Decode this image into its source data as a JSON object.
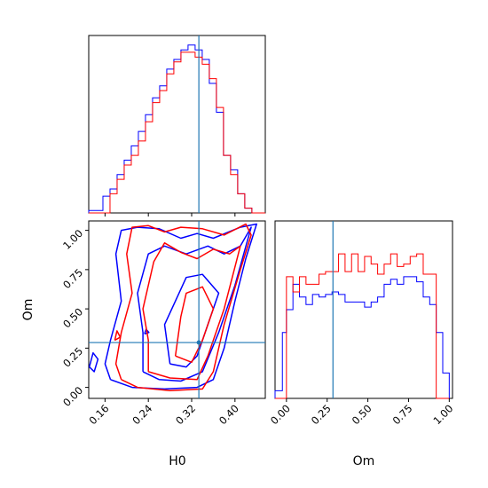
{
  "chart_data": [
    {
      "panel": "H0 marginal",
      "type": "histogram-step",
      "x_range": [
        0.1299,
        0.456
      ],
      "bin_edges": [
        0.1299,
        0.143,
        0.1561,
        0.1692,
        0.1823,
        0.1954,
        0.2085,
        0.2216,
        0.2347,
        0.2478,
        0.2609,
        0.274,
        0.2871,
        0.3002,
        0.3133,
        0.3264,
        0.3395,
        0.3526,
        0.3657,
        0.3788,
        0.3919,
        0.405,
        0.4181,
        0.4312,
        0.4443,
        0.456
      ],
      "series": [
        {
          "color": "#0000ff",
          "values": [
            0.5,
            0.5,
            3.5,
            5,
            8,
            11,
            14,
            17,
            20.5,
            24,
            26.5,
            30,
            32,
            34,
            35,
            34,
            32,
            27,
            21,
            12,
            9,
            4,
            1,
            0,
            0
          ]
        },
        {
          "color": "#ff0000",
          "values": [
            0,
            0,
            0,
            4,
            7,
            10,
            12,
            15,
            19,
            23,
            25.5,
            29,
            31.5,
            33.5,
            33.5,
            32.5,
            31,
            28,
            22,
            12,
            8,
            4,
            1,
            0,
            0
          ]
        }
      ],
      "truth_line": 0.3333,
      "x_ticks": [
        0.16,
        0.24,
        0.32,
        0.4
      ]
    },
    {
      "panel": "H0 vs Om 2D",
      "type": "contour",
      "xlabel": "H0",
      "ylabel": "Om",
      "x_range": [
        0.1299,
        0.456
      ],
      "y_range": [
        -0.07,
        1.06
      ],
      "x_tick_labels": [
        "0.16",
        "0.24",
        "0.32",
        "0.40"
      ],
      "x_tick_values": [
        0.16,
        0.24,
        0.32,
        0.4
      ],
      "y_tick_labels": [
        "0.00",
        "0.25",
        "0.50",
        "0.75",
        "1.00"
      ],
      "y_tick_values": [
        0.0,
        0.25,
        0.5,
        0.75,
        1.0
      ],
      "truth": {
        "x": 0.3333,
        "y": 0.2857
      },
      "series": [
        {
          "color": "#0000ff",
          "contours": [
            [
              [
                0.17,
                0.05
              ],
              [
                0.21,
                0.0
              ],
              [
                0.27,
                -0.01
              ],
              [
                0.33,
                0.0
              ],
              [
                0.36,
                0.05
              ],
              [
                0.38,
                0.25
              ],
              [
                0.4,
                0.55
              ],
              [
                0.42,
                0.82
              ],
              [
                0.44,
                1.04
              ],
              [
                0.41,
                1.02
              ],
              [
                0.36,
                0.95
              ],
              [
                0.33,
                0.98
              ],
              [
                0.3,
                0.95
              ],
              [
                0.26,
                1.01
              ],
              [
                0.22,
                1.02
              ],
              [
                0.19,
                1.0
              ],
              [
                0.18,
                0.85
              ],
              [
                0.19,
                0.55
              ],
              [
                0.17,
                0.3
              ],
              [
                0.16,
                0.15
              ],
              [
                0.17,
                0.05
              ]
            ],
            [
              [
                0.23,
                0.1
              ],
              [
                0.26,
                0.05
              ],
              [
                0.3,
                0.04
              ],
              [
                0.34,
                0.1
              ],
              [
                0.37,
                0.35
              ],
              [
                0.4,
                0.65
              ],
              [
                0.43,
                1.02
              ],
              [
                0.41,
                0.9
              ],
              [
                0.38,
                0.85
              ],
              [
                0.35,
                0.9
              ],
              [
                0.31,
                0.85
              ],
              [
                0.27,
                0.9
              ],
              [
                0.24,
                0.85
              ],
              [
                0.22,
                0.6
              ],
              [
                0.23,
                0.35
              ],
              [
                0.23,
                0.1
              ]
            ],
            [
              [
                0.28,
                0.15
              ],
              [
                0.31,
                0.13
              ],
              [
                0.33,
                0.2
              ],
              [
                0.35,
                0.4
              ],
              [
                0.37,
                0.6
              ],
              [
                0.34,
                0.72
              ],
              [
                0.31,
                0.7
              ],
              [
                0.29,
                0.55
              ],
              [
                0.27,
                0.4
              ],
              [
                0.28,
                0.15
              ]
            ],
            [
              [
                0.131,
                0.13
              ],
              [
                0.14,
                0.1
              ],
              [
                0.147,
                0.18
              ],
              [
                0.138,
                0.22
              ],
              [
                0.131,
                0.13
              ]
            ],
            [
              [
                0.233,
                0.34
              ],
              [
                0.241,
                0.35
              ],
              [
                0.236,
                0.37
              ],
              [
                0.233,
                0.34
              ]
            ]
          ]
        },
        {
          "color": "#ff0000",
          "contours": [
            [
              [
                0.19,
                0.05
              ],
              [
                0.22,
                0.0
              ],
              [
                0.28,
                -0.02
              ],
              [
                0.34,
                -0.01
              ],
              [
                0.36,
                0.1
              ],
              [
                0.38,
                0.4
              ],
              [
                0.41,
                0.75
              ],
              [
                0.43,
                0.97
              ],
              [
                0.42,
                1.04
              ],
              [
                0.38,
                0.97
              ],
              [
                0.34,
                1.01
              ],
              [
                0.3,
                1.02
              ],
              [
                0.27,
                0.99
              ],
              [
                0.24,
                1.03
              ],
              [
                0.21,
                1.02
              ],
              [
                0.2,
                0.85
              ],
              [
                0.21,
                0.6
              ],
              [
                0.19,
                0.35
              ],
              [
                0.18,
                0.15
              ],
              [
                0.19,
                0.05
              ]
            ],
            [
              [
                0.24,
                0.1
              ],
              [
                0.28,
                0.06
              ],
              [
                0.33,
                0.05
              ],
              [
                0.35,
                0.2
              ],
              [
                0.38,
                0.5
              ],
              [
                0.41,
                0.9
              ],
              [
                0.39,
                0.85
              ],
              [
                0.36,
                0.88
              ],
              [
                0.33,
                0.82
              ],
              [
                0.3,
                0.86
              ],
              [
                0.27,
                0.92
              ],
              [
                0.25,
                0.8
              ],
              [
                0.23,
                0.5
              ],
              [
                0.24,
                0.3
              ],
              [
                0.24,
                0.1
              ]
            ],
            [
              [
                0.29,
                0.2
              ],
              [
                0.32,
                0.16
              ],
              [
                0.34,
                0.3
              ],
              [
                0.36,
                0.5
              ],
              [
                0.34,
                0.64
              ],
              [
                0.31,
                0.6
              ],
              [
                0.3,
                0.45
              ],
              [
                0.29,
                0.2
              ]
            ],
            [
              [
                0.178,
                0.3
              ],
              [
                0.188,
                0.32
              ],
              [
                0.182,
                0.36
              ],
              [
                0.178,
                0.3
              ]
            ]
          ]
        }
      ]
    },
    {
      "panel": "Om marginal",
      "type": "histogram-step",
      "xlabel": "Om",
      "x_range": [
        -0.07,
        1.02
      ],
      "bin_edges": [
        -0.07,
        -0.025,
        0.0,
        0.04,
        0.08,
        0.12,
        0.16,
        0.2,
        0.24,
        0.28,
        0.32,
        0.36,
        0.4,
        0.44,
        0.48,
        0.52,
        0.56,
        0.6,
        0.64,
        0.68,
        0.72,
        0.76,
        0.8,
        0.84,
        0.88,
        0.92,
        0.96,
        1.0,
        1.02
      ],
      "x_tick_labels": [
        "0.00",
        "0.25",
        "0.50",
        "0.75",
        "1.00"
      ],
      "x_tick_values": [
        0.0,
        0.25,
        0.5,
        0.75,
        1.0
      ],
      "truth_line": 0.2857,
      "series": [
        {
          "color": "#0000ff",
          "values": [
            0.3,
            2.6,
            3.5,
            4.5,
            4.0,
            3.7,
            4.1,
            4.0,
            4.1,
            4.2,
            4.1,
            3.8,
            3.8,
            3.8,
            3.6,
            3.8,
            4.0,
            4.5,
            4.7,
            4.5,
            4.8,
            4.8,
            4.6,
            4.0,
            3.7,
            2.6,
            1.0
          ]
        },
        {
          "color": "#ff0000",
          "values": [
            0,
            0,
            4.8,
            4.2,
            4.8,
            4.5,
            4.5,
            4.9,
            5.0,
            5.0,
            5.7,
            5.0,
            5.7,
            5.0,
            5.6,
            5.3,
            4.9,
            5.3,
            5.7,
            5.2,
            5.3,
            5.6,
            5.7,
            4.9,
            4.9,
            0,
            0
          ]
        }
      ]
    }
  ]
}
